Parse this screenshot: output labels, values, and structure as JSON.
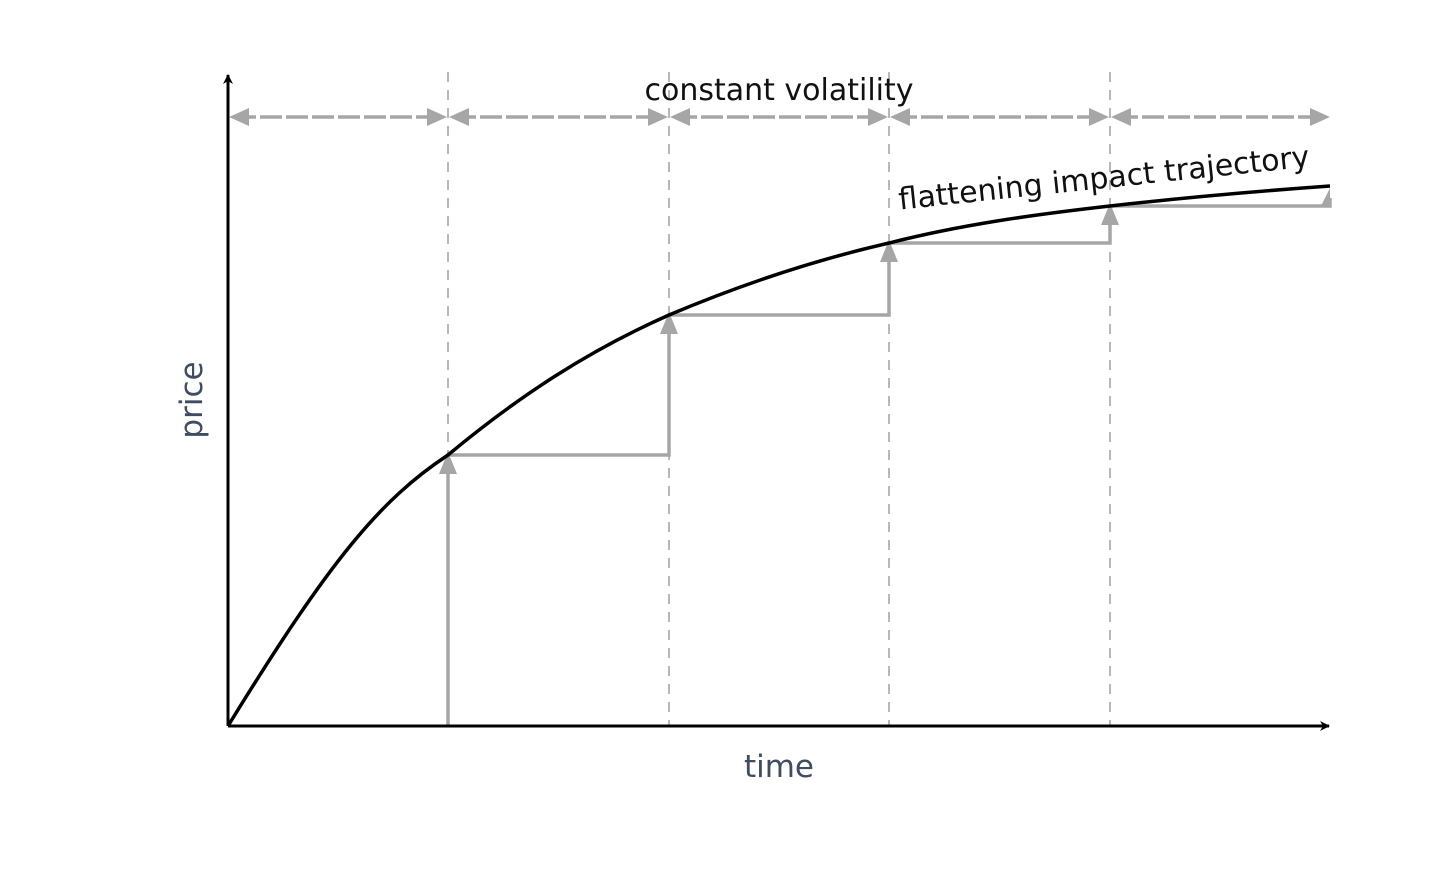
{
  "diagram": {
    "x_axis_label": "time",
    "y_axis_label": "price",
    "top_label": "constant volatility",
    "curve_label": "flattening impact trajectory",
    "segments": 5,
    "colors": {
      "axis": "#000000",
      "curve": "#000000",
      "steps": "#a6a6a6",
      "axis_label": "#3f4d63"
    }
  }
}
